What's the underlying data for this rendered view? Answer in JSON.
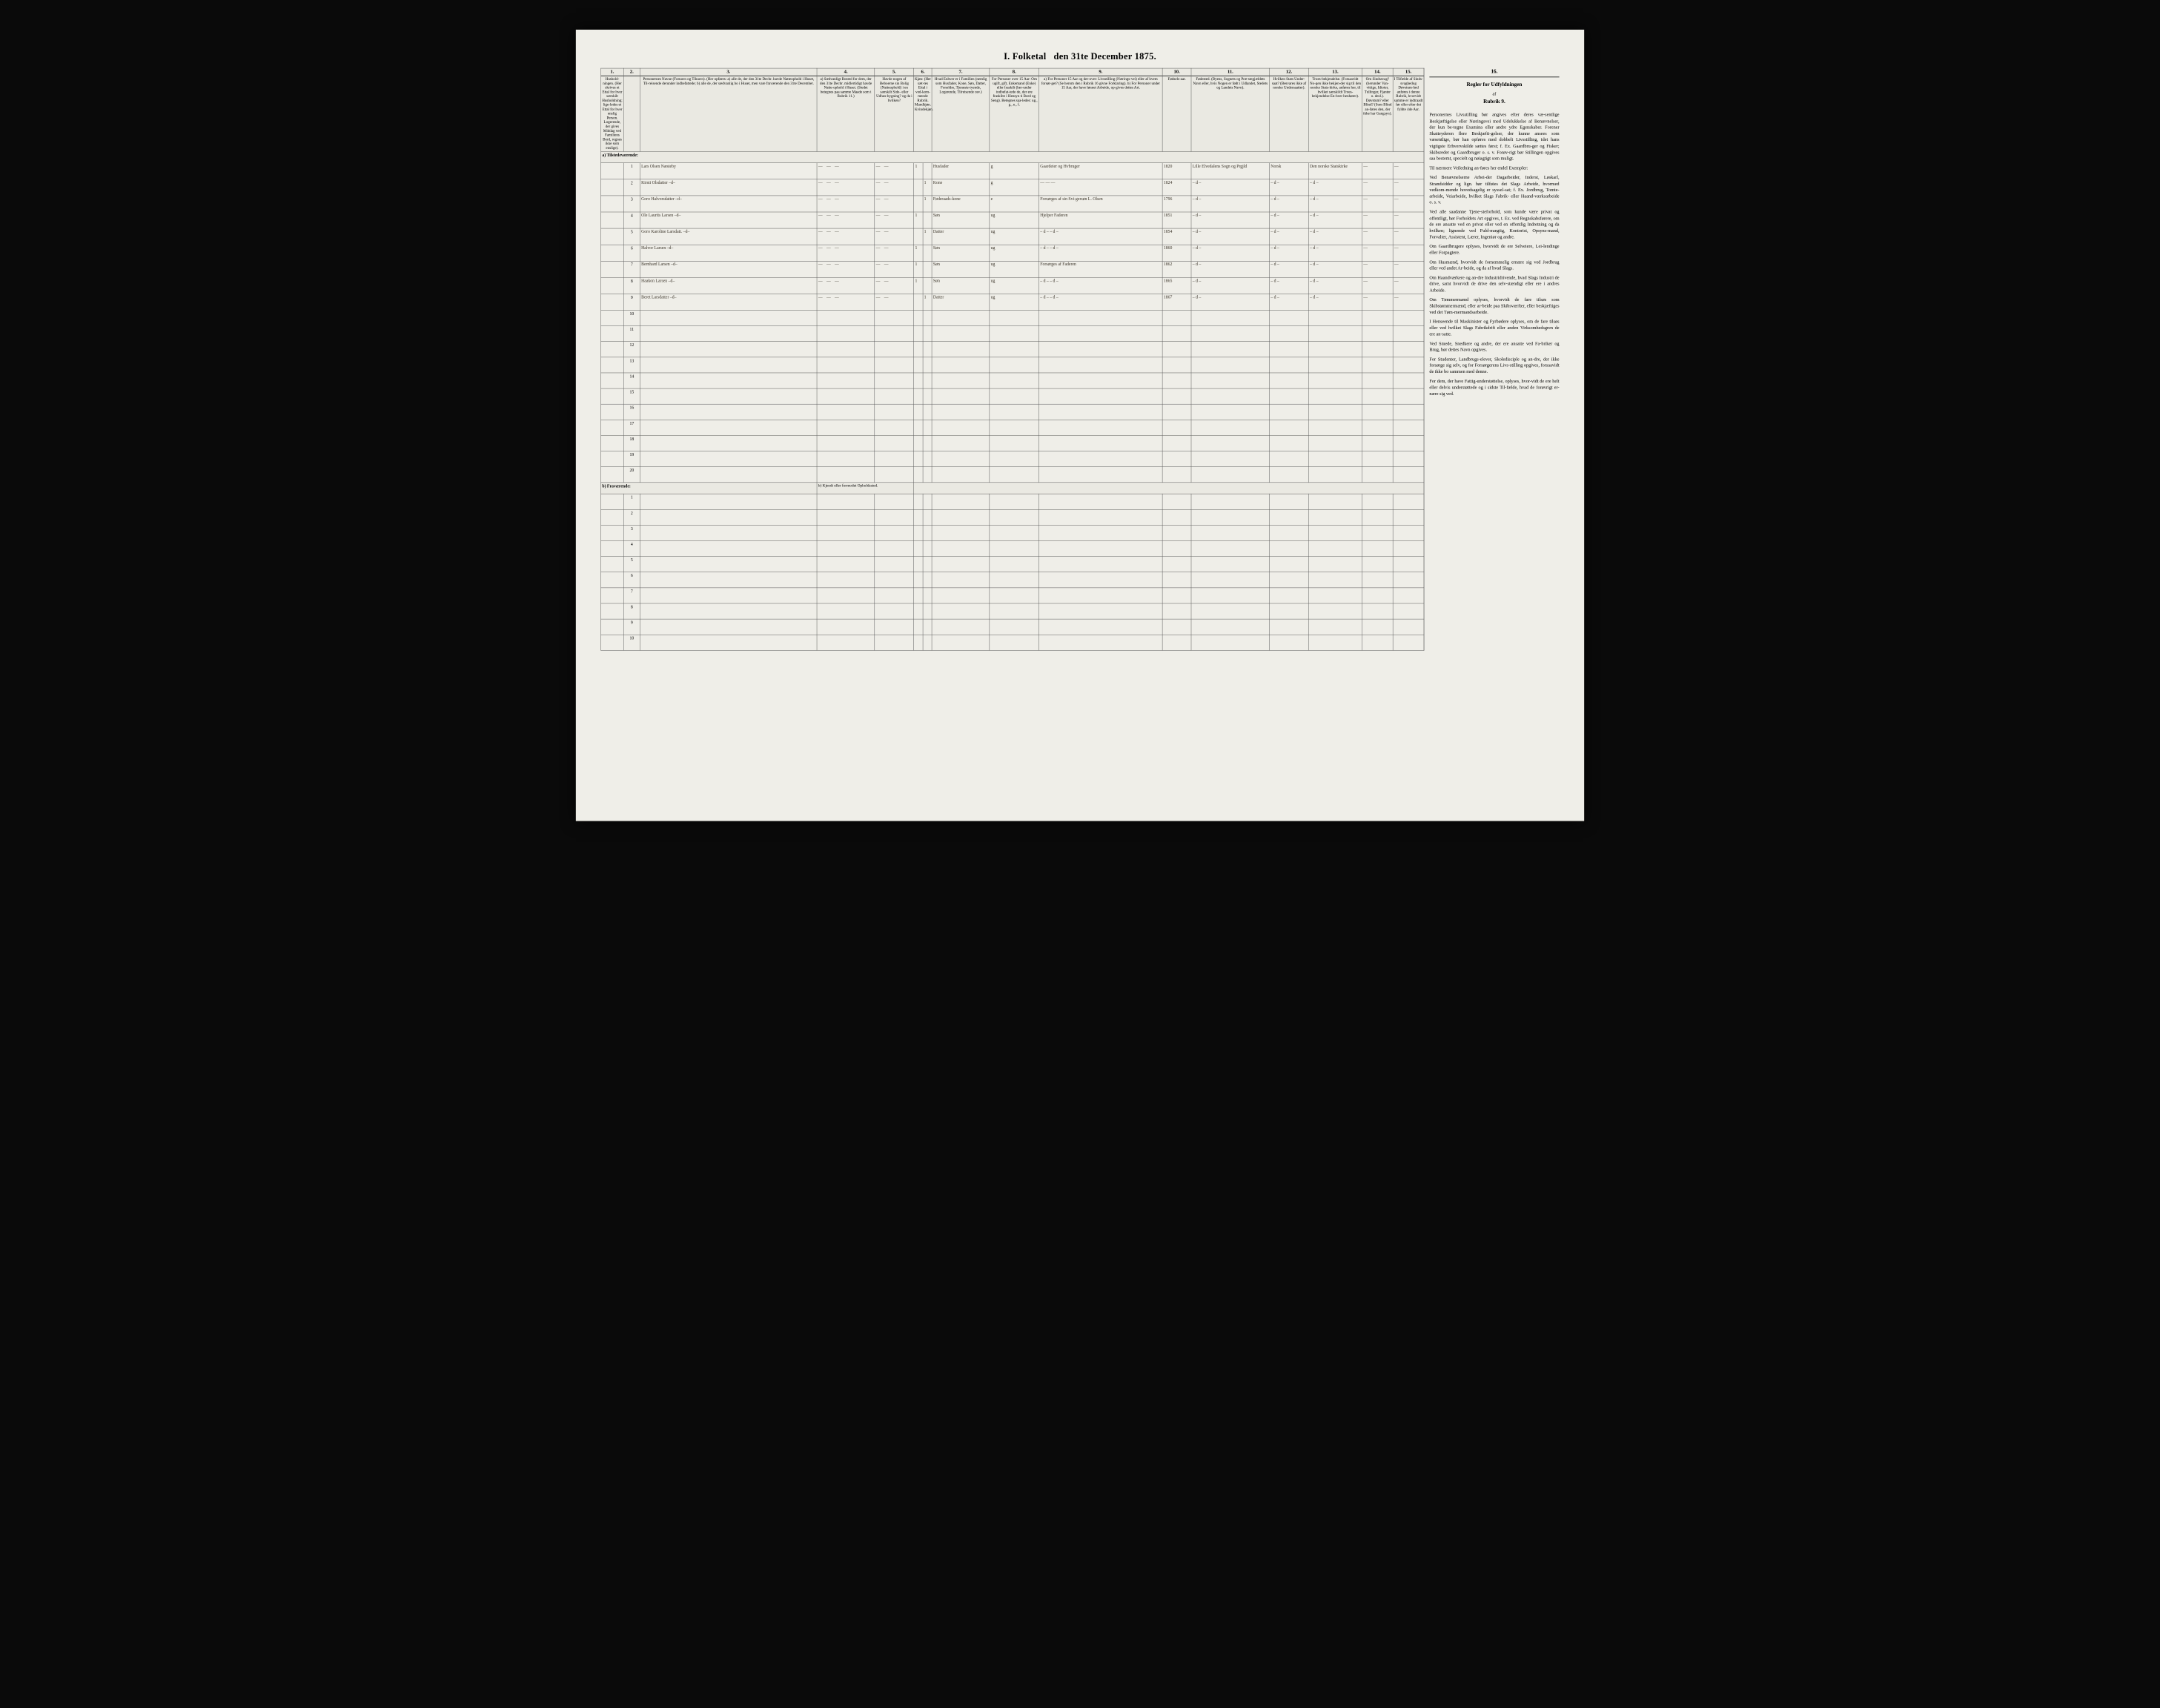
{
  "title_prefix": "I.  Folketal",
  "title_suffix": "den 31te December 1875.",
  "columns": {
    "1": "1.",
    "2": "2.",
    "3": "3.",
    "4": "4.",
    "5": "5.",
    "6": "6.",
    "7": "7.",
    "8": "8.",
    "9": "9.",
    "10": "10.",
    "11": "11.",
    "12": "12.",
    "13": "13.",
    "14": "14.",
    "15": "15.",
    "16": "16."
  },
  "headers": {
    "c1": "Hushold-ningen. (Her skrives et Ettal for hver særskilt Husholdning; lige-ledes et Ettal for hver enslig Person. Logerende, der gives Middag ved Familiens Bord, regnes ikke som enslige).",
    "c3": "Personernes Navne (Fornavn og Tilnavn). (Her opføres: a) alle de, der den 31te Decbr. havde Natteophold i Huset, Til-reisende derunder indbefattede; b) alle de, der sædvanlig bo i Huset, men vare fraværende den 31te December.",
    "c4": "a) Sædvanligt Bosted for dem, der den 31te Decbr. midlertidigt havde Natte-ophold i Huset. (Stedet betegnes paa samme Maade som i Rubrik 11.)",
    "c5": "Havde nogen af Beboerne sin Bolig (Natteophold) i en særskilt Side- eller Udhus-bygning? og da i hvilken?",
    "c6": "Kjøn: (Her sæt-tes Ettal i ved-kom-mende Rubrik. Mandkjøn. Kvindekjøn.",
    "c7": "Hvad Enhver er i Familien (nemlig som Husfader, Kone, Søn, Datter, Forældre, Tjeneste-tyende, Logerende, Tilreisende osv.)",
    "c8": "For Personer over 15 Aar: Om ugift, gift, Enkemand (Enke) eller fraskilt (her-under indbefat-tede de, der ere fraskilte i Hensyn ti Bord og Seng). Betegnes saa-ledes: ug., g., e., f.",
    "c9": "a) For Personer 15 Aar og der-over: Livsstilling (Nærings-vei) eller af hvem forsør-get? (Se herom den i Rubrik 16 givne Forklaring). b) For Personer under 15 Aar, der have lønnet Arbeide, op-gives dettes Art.",
    "c10": "Fødsels-aar.",
    "c11": "Fødested. (Byens, Sognets og Præ-stegjældets Navn eller, hvis Nogen er født i Udlandet, Stedets og Landets Navn).",
    "c12": "Hvilken Stats Under-saat? (Besvares ikke af norske Undersaatter).",
    "c13": "Troes-bekjendelse. (Forsaavidt No-gen ikke bekjen-der sig til den norske Stats-kirke, anføres her, til hvilket særskildt Troes-bekjendelse En-hver henhører).",
    "c14": "Om Sindssvag? (herunder Van-vittige, Idioter, Tullinger, Fjanter o. desl.). Døvstum? eller Blind? (Som Blind an-føres den, der ikke har Gangsyn).",
    "c15": "I Tilfælde af Sinds-svaghedog Døvstum-hed anføres i denne Rubrik, hvorvidt samme er indtraadt før eller efter det fyldte 4de Aar.",
    "c16": "Regler for Udfyldningen af Rubrik 9."
  },
  "section_a": "a) Tilstedeværende:",
  "section_b": "b) Fraværende:",
  "section_b_note": "b) Kjendt eller formodet Opholdssted.",
  "rows": [
    {
      "n": "1",
      "name": "Lars Olsen Næsteby",
      "c4": "— — —",
      "c5": "— —",
      "k": "1",
      "kv": "",
      "rel": "Husfader",
      "ms": "g",
      "occ": "Gaardeier og Hvbruger",
      "yr": "1820",
      "birth": "Lille Elvedalens Sogn og Prgjld",
      "stat": "Norsk",
      "rel2": "Den norske Statskirke",
      "c14": "—",
      "c15": "—"
    },
    {
      "n": "2",
      "name": "Kirsti Olsdatter –d–",
      "c4": "— — —",
      "c5": "— —",
      "k": "",
      "kv": "1",
      "rel": "Kone",
      "ms": "g",
      "occ": "— — —",
      "yr": "1824",
      "birth": "– d –",
      "stat": "– d –",
      "rel2": "– d –",
      "c14": "—",
      "c15": "—"
    },
    {
      "n": "3",
      "name": "Goro Halvorsdatter –d–",
      "c4": "— — —",
      "c5": "— —",
      "k": "",
      "kv": "1",
      "rel": "Føderaads-kone",
      "ms": "e",
      "occ": "Forsørges af sin Svi-gersøn L. Olsen",
      "yr": "1796",
      "birth": "– d –",
      "stat": "– d –",
      "rel2": "– d –",
      "c14": "—",
      "c15": "—"
    },
    {
      "n": "4",
      "name": "Ole Laurits Larsen –d–",
      "c4": "— — —",
      "c5": "— —",
      "k": "1",
      "kv": "",
      "rel": "Søn",
      "ms": "ug",
      "occ": "Hjelper Faderen",
      "yr": "1851",
      "birth": "– d –",
      "stat": "– d –",
      "rel2": "– d –",
      "c14": "—",
      "c15": "—"
    },
    {
      "n": "5",
      "name": "Goro Karoline Larsdatt. –d–",
      "c4": "— — —",
      "c5": "— —",
      "k": "",
      "kv": "1",
      "rel": "Datter",
      "ms": "ug",
      "occ": "– d – – d –",
      "yr": "1854",
      "birth": "– d –",
      "stat": "– d –",
      "rel2": "– d –",
      "c14": "—",
      "c15": "—"
    },
    {
      "n": "6",
      "name": "Halvor Larsen –d–",
      "c4": "— — —",
      "c5": "— —",
      "k": "1",
      "kv": "",
      "rel": "Søn",
      "ms": "ug",
      "occ": "– d – – d –",
      "yr": "1860",
      "birth": "– d –",
      "stat": "– d –",
      "rel2": "– d –",
      "c14": "—",
      "c15": "—"
    },
    {
      "n": "7",
      "name": "Bernhard Larsen –d–",
      "c4": "— — —",
      "c5": "— —",
      "k": "1",
      "kv": "",
      "rel": "Søn",
      "ms": "ug",
      "occ": "Forsørges af Faderen",
      "yr": "1862",
      "birth": "– d –",
      "stat": "– d –",
      "rel2": "– d –",
      "c14": "—",
      "c15": "—"
    },
    {
      "n": "8",
      "name": "Haakon Larsen –d–",
      "c4": "— — —",
      "c5": "— —",
      "k": "1",
      "kv": "",
      "rel": "Søn",
      "ms": "ug",
      "occ": "– d – – d –",
      "yr": "1865",
      "birth": "– d –",
      "stat": "– d –",
      "rel2": "– d –",
      "c14": "—",
      "c15": "—"
    },
    {
      "n": "9",
      "name": "Beret Larsdatter –d–",
      "c4": "— — —",
      "c5": "— —",
      "k": "",
      "kv": "1",
      "rel": "Datter",
      "ms": "ug",
      "occ": "– d – – d –",
      "yr": "1867",
      "birth": "– d –",
      "stat": "– d –",
      "rel2": "– d –",
      "c14": "—",
      "c15": "—"
    }
  ],
  "blank_a": [
    "10",
    "11",
    "12",
    "13",
    "14",
    "15",
    "16",
    "17",
    "18",
    "19",
    "20"
  ],
  "blank_b": [
    "1",
    "2",
    "3",
    "4",
    "5",
    "6",
    "7",
    "8",
    "9",
    "10"
  ],
  "right_text": {
    "heading": "Regler for Udfyldningen",
    "af": "af",
    "rubrik": "Rubrik 9.",
    "paras": [
      "Personernes Livsstilling bør angives efter deres væ-sentlige Beskjæftigelse eller Næringsvei med Udelukkelse af Benævnelser, der kun be-tegne Examina eller andre ydre Egenskaber. Forener Skatteyderen flere Beskjæfti-gelser, der kunne ansees som væsentlige, bør han opføres med dobbelt Livsstilling, idet hans vigtigste Erhvervskilde sættes først; f. Ex. Gaardbru-ger og Fisker; Skibsreder og Gaardbruger o. s. v. Forøv-rigt bør Stillingen opgives saa bestemt, specielt og nøiagtigt som muligt.",
      "Til nærmere Veiledning an-føres her endel Exempler:",
      "Ved Benævnelserne Arbei-der Dagarbeider, Inderst, Løskarl, Strandsidder og lign. bør tilføies det Slags Arbeide, hvormed vedkom-mende hovedsagelig er syssel-sat; f. Ex. Jordbrug, Tomte-arbeide, Veiarbeide, hvilket Slags Fabrik- eller Haand-værksarbeide o. s. v.",
      "Ved alle saadanne Tjene-steforhold, som kunde være privat og offentligt, bør Forholdets Art opgives, t. Ex. ved Regnskabsførere, om de ere ansatte ved en privat eller ved en offentlig Indretning og da hvilken; lignende ved Fuld-mægtig, Kontorist, Opsyns-mand, Forvalter, Assistent, Lærer, Ingeniør og andre.",
      "Om Gaardbrugere oplyses, hvorvidt de ere Selveiere, Lei-lendinge eller Forpagtere.",
      "Om Husmænd, hvorvidt de fornemmelig ernære sig ved Jordbrug eller ved andet Ar-beide, og da af hvad Slags.",
      "Om Haandværkere og an-dre Industridrivende, hvad Slags Industri de drive, samt hvorvidt de drive den selv-stændigt eller ere i andres Arbeide.",
      "Om Tømmermænd oplyses, hvorvidt de fare tilsøs som Skibstømmermænd, eller ar-beide paa Skibsværfter, eller beskjæftiges ved det Tøm-mermandsarbeide.",
      "I Henseende til Maskinister og Fyrbødere oplyses, om de fare tilsøs eller ved hvilket Slags Fabrikdrift eller anden Virksomhedsgren de ere an-satte.",
      "Ved Smede, Snedkere og andre, der ere ansatte ved Fa-briker og Brug, bør dettes Navn opgives.",
      "For Studenter, Landbrugs-elever, Skoledisciple og an-dre, der ikke forsørge sig selv, og for Forsørgerens Livs-stilling opgives, forsaavidt de ikke bo sammen med denne.",
      "For dem, der have Fattig-understøttelse, oplyses, hvor-vidt de ere helt eller delvis understøttede og i sidste Til-fælde, hvad de forøvrigt er-nære sig ved."
    ]
  },
  "colors": {
    "paper": "#efeee8",
    "ink": "#2b2b2b",
    "hand": "#3a3328",
    "border": "#555555"
  }
}
